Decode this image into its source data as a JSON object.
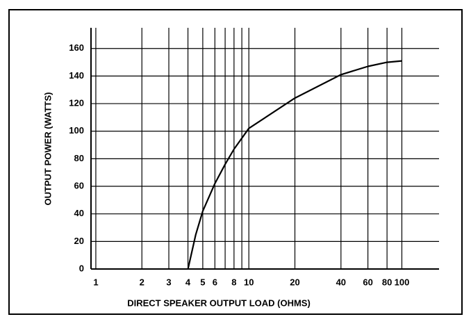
{
  "chart_data": {
    "type": "line",
    "ylabel": "OUTPUT POWER (WATTS)",
    "xlabel": "DIRECT SPEAKER OUTPUT LOAD (OHMS)",
    "xscale": "log",
    "xlim": [
      0.93,
      175
    ],
    "ylim": [
      0,
      175
    ],
    "xticks": [
      1,
      2,
      3,
      4,
      5,
      6,
      8,
      10,
      20,
      40,
      60,
      80,
      100
    ],
    "xminor": [
      7,
      9
    ],
    "yticks": [
      0,
      20,
      40,
      60,
      80,
      100,
      120,
      140,
      160
    ],
    "grid": true,
    "series": [
      {
        "color": "#000000",
        "x": [
          4,
          4.5,
          5,
          6,
          7,
          8,
          10,
          20,
          40,
          60,
          80,
          100
        ],
        "values": [
          0,
          25,
          42,
          62,
          76,
          87,
          102,
          124,
          141,
          147,
          150,
          151
        ]
      }
    ]
  }
}
